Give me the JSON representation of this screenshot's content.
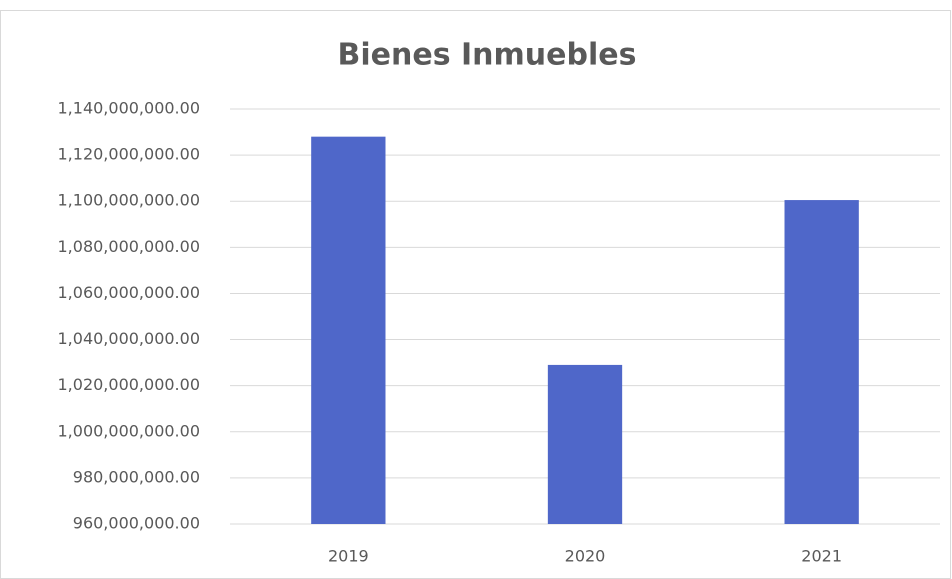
{
  "chart_data": {
    "type": "bar",
    "title": "Bienes Inmuebles",
    "categories": [
      "2019",
      "2020",
      "2021"
    ],
    "values": [
      1128000000,
      1029000000,
      1100500000
    ],
    "color": "#4f67c9",
    "ylim": [
      960000000,
      1140000000
    ],
    "yticks": [
      {
        "value": 960000000,
        "label": "960,000,000.00"
      },
      {
        "value": 980000000,
        "label": "980,000,000.00"
      },
      {
        "value": 1000000000,
        "label": "1,000,000,000.00"
      },
      {
        "value": 1020000000,
        "label": "1,020,000,000.00"
      },
      {
        "value": 1040000000,
        "label": "1,040,000,000.00"
      },
      {
        "value": 1060000000,
        "label": "1,060,000,000.00"
      },
      {
        "value": 1080000000,
        "label": "1,080,000,000.00"
      },
      {
        "value": 1100000000,
        "label": "1,100,000,000.00"
      },
      {
        "value": 1120000000,
        "label": "1,120,000,000.00"
      },
      {
        "value": 1140000000,
        "label": "1,140,000,000.00"
      }
    ],
    "grid": true
  }
}
